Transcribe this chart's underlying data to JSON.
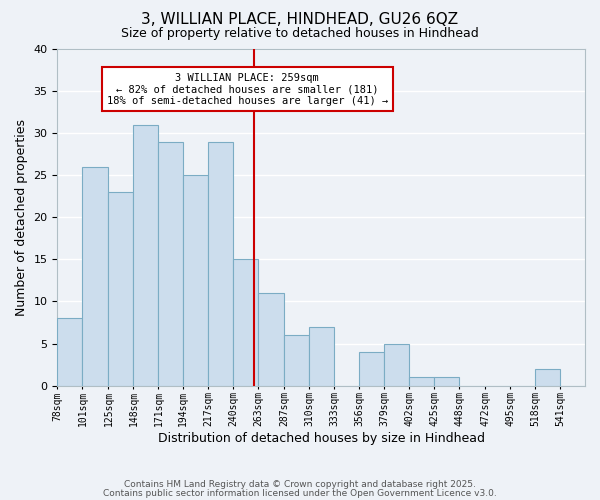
{
  "title": "3, WILLIAN PLACE, HINDHEAD, GU26 6QZ",
  "subtitle": "Size of property relative to detached houses in Hindhead",
  "xlabel": "Distribution of detached houses by size in Hindhead",
  "ylabel": "Number of detached properties",
  "bar_color": "#ccdded",
  "bar_edge_color": "#7bacc4",
  "background_color": "#eef2f7",
  "grid_color": "#ffffff",
  "bin_labels": [
    "78sqm",
    "101sqm",
    "125sqm",
    "148sqm",
    "171sqm",
    "194sqm",
    "217sqm",
    "240sqm",
    "263sqm",
    "287sqm",
    "310sqm",
    "333sqm",
    "356sqm",
    "379sqm",
    "402sqm",
    "425sqm",
    "448sqm",
    "472sqm",
    "495sqm",
    "518sqm",
    "541sqm"
  ],
  "bin_edges": [
    78,
    101,
    125,
    148,
    171,
    194,
    217,
    240,
    263,
    287,
    310,
    333,
    356,
    379,
    402,
    425,
    448,
    472,
    495,
    518,
    541,
    564
  ],
  "bar_heights": [
    8,
    26,
    23,
    31,
    29,
    25,
    29,
    15,
    11,
    6,
    7,
    0,
    4,
    5,
    1,
    1,
    0,
    0,
    0,
    2,
    0
  ],
  "vline_x": 259,
  "vline_color": "#cc0000",
  "annotation_title": "3 WILLIAN PLACE: 259sqm",
  "annotation_line1": "← 82% of detached houses are smaller (181)",
  "annotation_line2": "18% of semi-detached houses are larger (41) →",
  "annotation_box_color": "#ffffff",
  "annotation_box_edge": "#cc0000",
  "ylim": [
    0,
    40
  ],
  "footnote1": "Contains HM Land Registry data © Crown copyright and database right 2025.",
  "footnote2": "Contains public sector information licensed under the Open Government Licence v3.0."
}
